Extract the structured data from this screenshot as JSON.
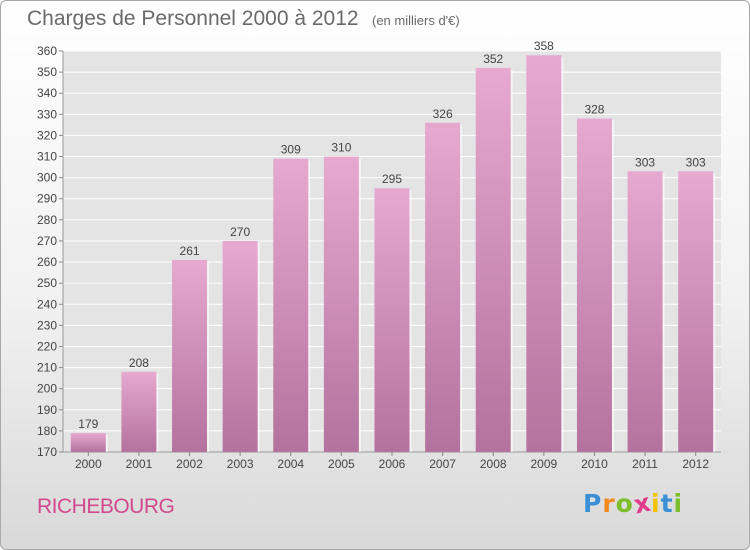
{
  "title": "Charges de Personnel 2000 à 2012",
  "subtitle": "(en milliers d'€)",
  "location": "RICHEBOURG",
  "logo": {
    "text": "Proxiti",
    "letters": [
      {
        "char": "P",
        "color": "#3b8fd6"
      },
      {
        "char": "r",
        "color": "#f08a1c"
      },
      {
        "char": "o",
        "color": "#7cbf2a"
      },
      {
        "char": "x",
        "color": "#e23b8a"
      },
      {
        "char": "i",
        "color": "#f2c200"
      },
      {
        "char": "t",
        "color": "#3b8fd6"
      },
      {
        "char": "i",
        "color": "#7cbf2a"
      }
    ]
  },
  "colors": {
    "bar_top": "#e6a9cf",
    "bar_bottom": "#b4729e",
    "grid": "#ffffff",
    "text": "#444444"
  },
  "chart_data": {
    "type": "bar",
    "categories": [
      "2000",
      "2001",
      "2002",
      "2003",
      "2004",
      "2005",
      "2006",
      "2007",
      "2008",
      "2009",
      "2010",
      "2011",
      "2012"
    ],
    "values": [
      179,
      208,
      261,
      270,
      309,
      310,
      295,
      326,
      352,
      358,
      328,
      303,
      303
    ],
    "ylim": [
      170,
      360
    ],
    "ytick_step": 10,
    "grid": true,
    "data_labels": true
  }
}
